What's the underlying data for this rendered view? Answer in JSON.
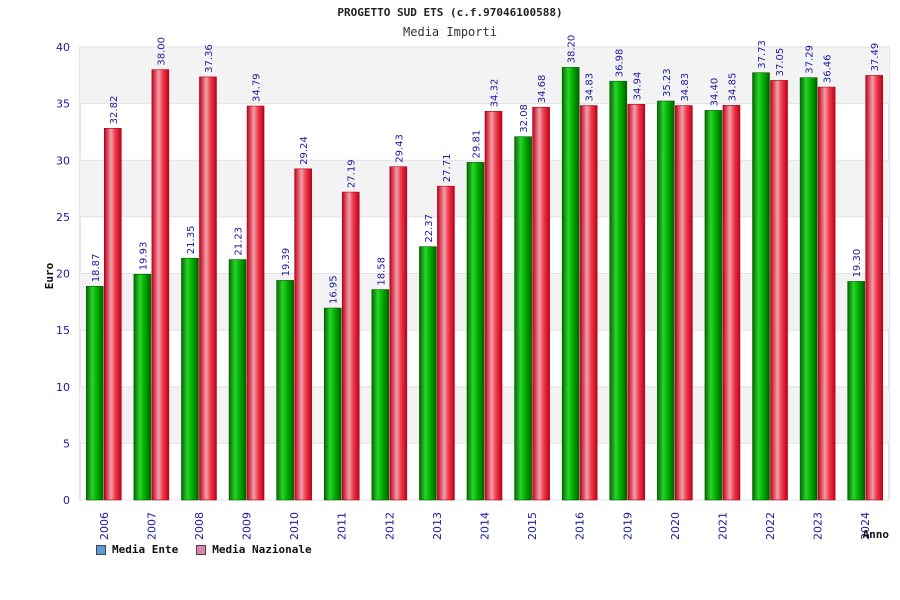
{
  "chart_data": {
    "type": "bar",
    "title": "PROGETTO SUD ETS (c.f.97046100588)",
    "subtitle": "Media Importi",
    "ylabel": "Euro",
    "xlabel": "Anno",
    "ylim": [
      0,
      40
    ],
    "yticks": [
      0,
      5,
      10,
      15,
      20,
      25,
      30,
      35,
      40
    ],
    "categories": [
      "2006",
      "2007",
      "2008",
      "2009",
      "2010",
      "2011",
      "2012",
      "2013",
      "2014",
      "2015",
      "2016",
      "2019",
      "2020",
      "2021",
      "2022",
      "2023",
      "2024"
    ],
    "series": [
      {
        "name": "Media Ente",
        "color": "#00a000",
        "legend_color": "#5b9bd5",
        "values": [
          18.87,
          19.93,
          21.35,
          21.23,
          19.39,
          16.95,
          18.58,
          22.37,
          29.81,
          32.08,
          38.2,
          36.98,
          35.23,
          34.4,
          37.73,
          37.29,
          19.3
        ],
        "labels": [
          "18.87",
          "19.93",
          "21.35",
          "21.23",
          "19.39",
          "16.95",
          "18.58",
          "22.37",
          "29.81",
          "32.08",
          "38.20",
          "36.98",
          "35.23",
          "34.40",
          "37.73",
          "37.29",
          "19.30"
        ]
      },
      {
        "name": "Media Nazionale",
        "color": "#e8102a",
        "legend_color": "#e07fb0",
        "values": [
          32.82,
          38.0,
          37.36,
          34.79,
          29.24,
          27.19,
          29.43,
          27.71,
          34.32,
          34.68,
          34.83,
          34.94,
          34.83,
          34.85,
          37.05,
          36.46,
          37.49
        ],
        "labels": [
          "32.82",
          "38.00",
          "37.36",
          "34.79",
          "29.24",
          "27.19",
          "29.43",
          "27.71",
          "34.32",
          "34.68",
          "34.83",
          "34.94",
          "34.83",
          "34.85",
          "37.05",
          "36.46",
          "37.49"
        ]
      }
    ],
    "grid": true
  }
}
